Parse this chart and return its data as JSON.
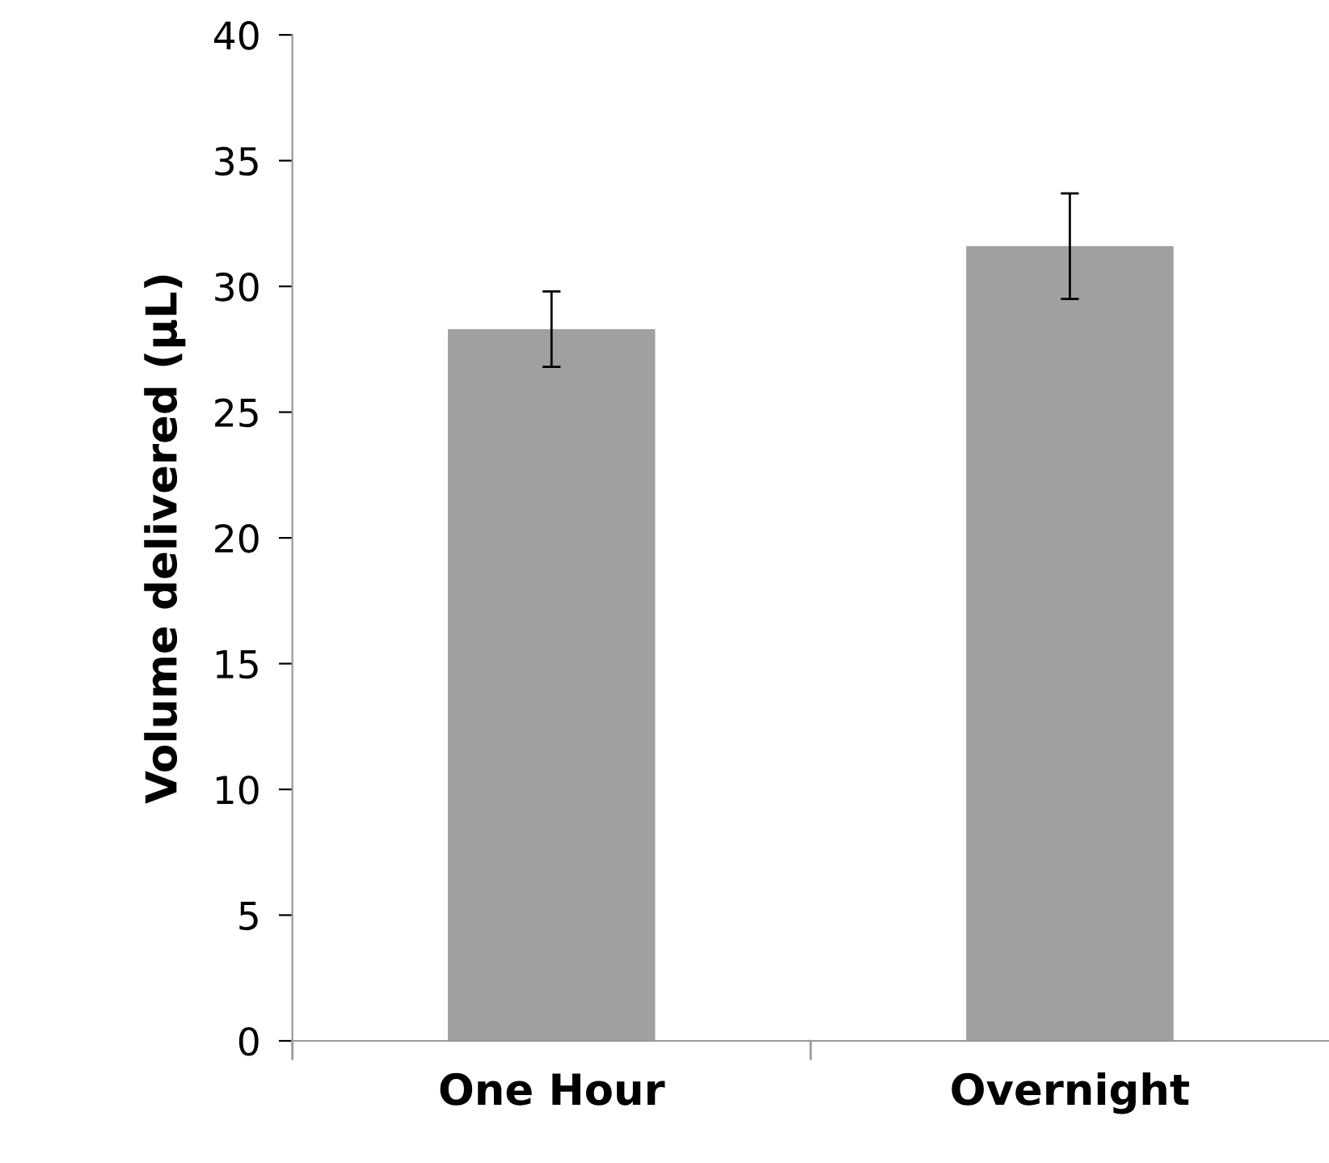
{
  "chart_data": {
    "type": "bar",
    "ylabel": "Volume delivered (µL)",
    "categories": [
      "One Hour",
      "Overnight"
    ],
    "values": [
      28.3,
      31.6
    ],
    "errors": [
      1.5,
      2.1
    ],
    "color": "#a0a0a0",
    "ylim": [
      0,
      40
    ],
    "yticks": [
      0,
      5,
      10,
      15,
      20,
      25,
      30,
      35,
      40
    ],
    "grid": false,
    "legend": false
  }
}
